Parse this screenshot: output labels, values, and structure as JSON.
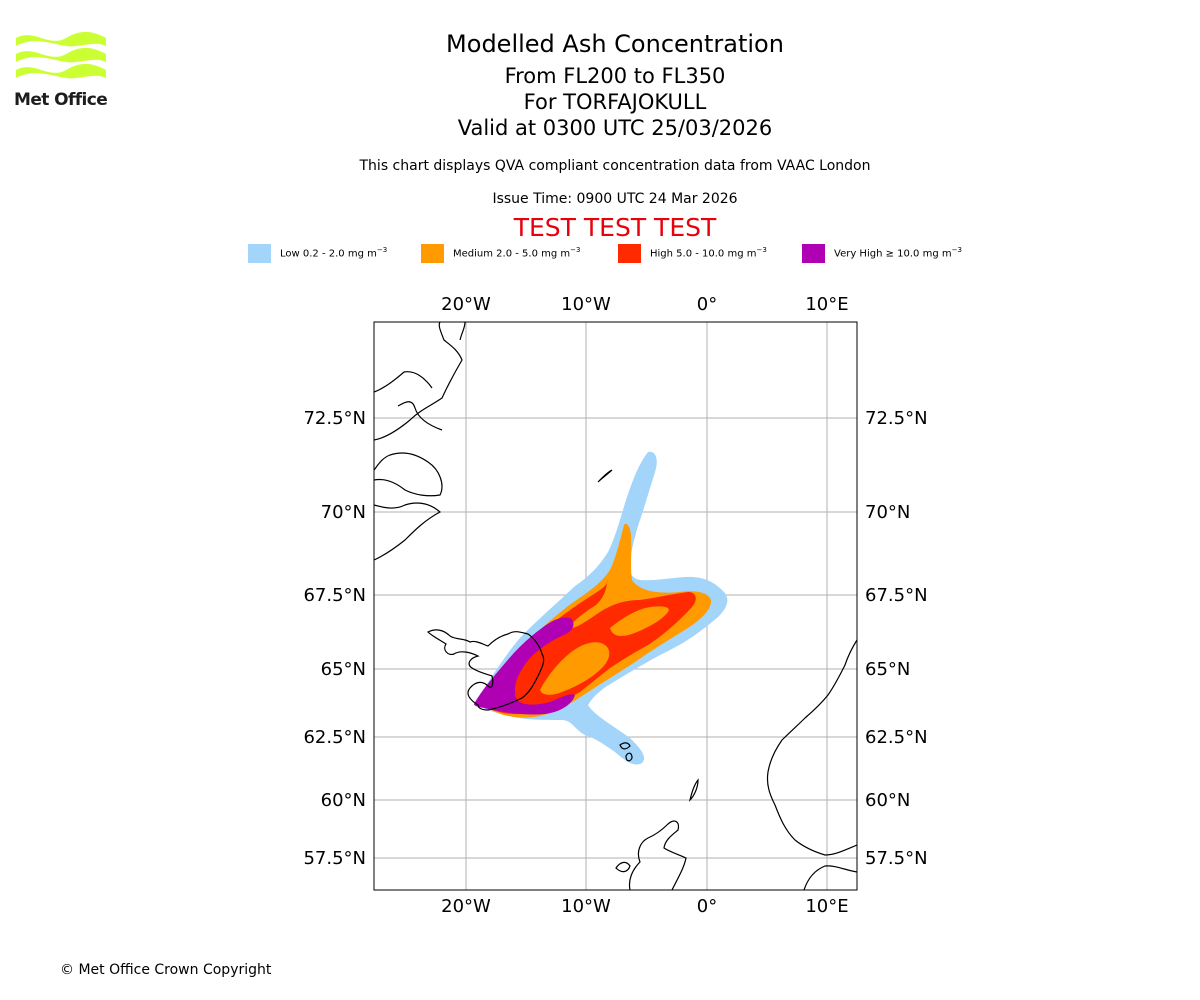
{
  "logo": {
    "text": "Met Office",
    "color": "#ccff33"
  },
  "header": {
    "title": "Modelled Ash Concentration",
    "levels": "From FL200 to FL350",
    "volcano": "For TORFAJOKULL",
    "valid": "Valid at 0300 UTC 25/03/2026",
    "subtitle": "This chart displays QVA compliant concentration data from VAAC London",
    "issue_time": "Issue Time: 0900 UTC 24 Mar 2026",
    "test_banner": "TEST TEST TEST"
  },
  "legend": [
    {
      "key": "low",
      "label_main": "Low 0.2 - 2.0 mg m",
      "label_sup": "−3",
      "color": "#a3d4fa"
    },
    {
      "key": "medium",
      "label_main": "Medium 2.0 - 5.0 mg m",
      "label_sup": "−3",
      "color": "#ff9a00"
    },
    {
      "key": "high",
      "label_main": "High 5.0 - 10.0 mg m",
      "label_sup": "−3",
      "color": "#ff2a00"
    },
    {
      "key": "very-high",
      "label_main": "Very High  ≥  10.0 mg m",
      "label_sup": "−3",
      "color": "#b000b4"
    }
  ],
  "map": {
    "longitude_labels": [
      "20°W",
      "10°W",
      "0°",
      "10°E"
    ],
    "latitude_labels": [
      "72.5°N",
      "70°N",
      "67.5°N",
      "65°N",
      "62.5°N",
      "60°N",
      "57.5°N"
    ],
    "gridline_color": "#b0b0b0"
  },
  "footer": {
    "copyright": "© Met Office Crown Copyright"
  }
}
